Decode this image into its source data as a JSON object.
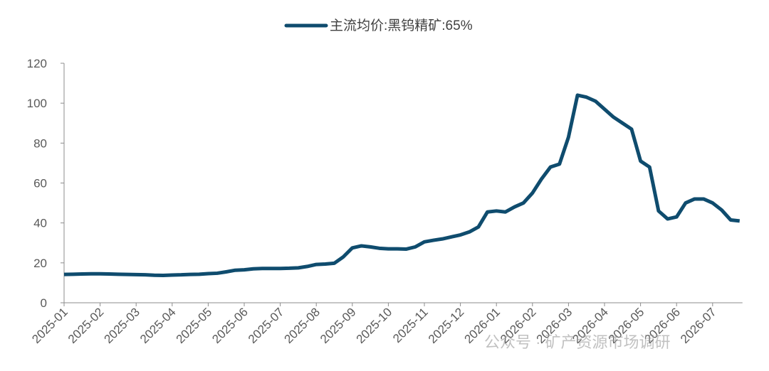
{
  "chart_data": {
    "type": "line",
    "series": [
      {
        "name": "主流均价:黑钨精矿:65%",
        "color": "#0f4c6e",
        "values": [
          14.2,
          14.3,
          14.4,
          14.5,
          14.5,
          14.4,
          14.3,
          14.2,
          14.1,
          14.0,
          13.8,
          13.7,
          13.9,
          14.0,
          14.2,
          14.3,
          14.6,
          14.8,
          15.5,
          16.3,
          16.5,
          17.0,
          17.2,
          17.2,
          17.2,
          17.3,
          17.5,
          18.2,
          19.2,
          19.4,
          19.8,
          23.0,
          27.5,
          28.5,
          28.0,
          27.3,
          27.0,
          27.0,
          26.9,
          28.0,
          30.5,
          31.3,
          32.0,
          33.0,
          34.0,
          35.5,
          38.0,
          45.5,
          46.0,
          45.5,
          48.0,
          50.0,
          55.0,
          62.0,
          68.0,
          69.5,
          83.0,
          104.0,
          103.0,
          101.0,
          97.0,
          93.0,
          90.0,
          87.0,
          71.0,
          68.0,
          46.0,
          42.0,
          43.0,
          50.0,
          52.0,
          52.0,
          50.0,
          46.5,
          41.5,
          41.0
        ]
      }
    ],
    "categories": [
      "2025-01",
      null,
      null,
      null,
      "2025-02",
      null,
      null,
      null,
      "2025-03",
      null,
      null,
      null,
      "2025-04",
      null,
      null,
      null,
      "2025-05",
      null,
      null,
      null,
      "2025-06",
      null,
      null,
      null,
      "2025-07",
      null,
      null,
      null,
      "2025-08",
      null,
      null,
      null,
      "2025-09",
      null,
      null,
      null,
      "2025-10",
      null,
      null,
      null,
      "2025-11",
      null,
      null,
      null,
      "2025-12",
      null,
      null,
      null,
      "2026-01",
      null,
      null,
      null,
      "2026-02",
      null,
      null,
      null,
      "2026-03",
      null,
      null,
      null,
      "2026-04",
      null,
      null,
      null,
      "2026-05",
      null,
      null,
      null,
      "2026-06",
      null,
      null,
      null,
      "2026-07",
      null,
      null,
      null
    ],
    "ylim": [
      0,
      120
    ],
    "yticks": [
      0,
      20,
      40,
      60,
      80,
      100,
      120
    ],
    "grid": false,
    "legend": "top",
    "watermark": "公众号 · 矿产资源市场调研"
  }
}
